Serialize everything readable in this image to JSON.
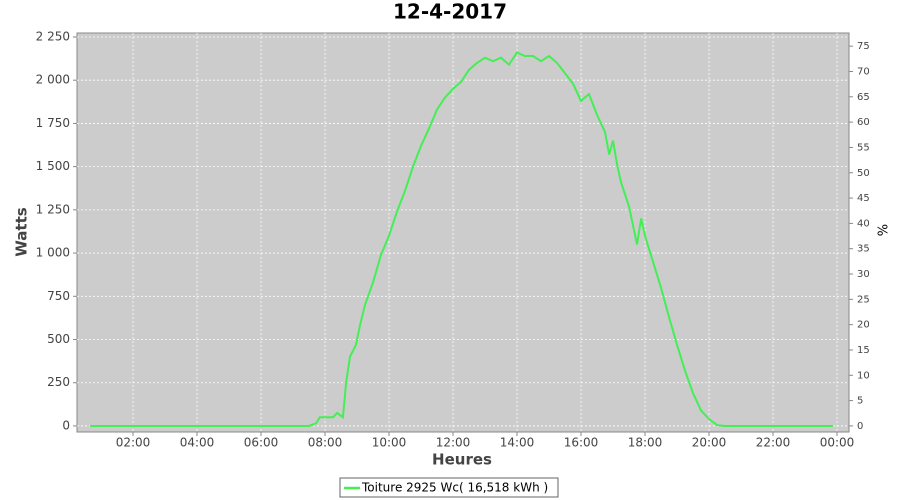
{
  "chart_data": {
    "type": "line",
    "title": "12-4-2017",
    "x_label": "Heures",
    "y_label": "Watts",
    "y2_label": "%",
    "x": [
      0.66,
      7.5,
      7.72,
      7.84,
      8.25,
      8.38,
      8.56,
      8.66,
      8.78,
      8.97,
      9.09,
      9.25,
      9.5,
      9.75,
      10.0,
      10.25,
      10.5,
      10.75,
      11.0,
      11.25,
      11.5,
      11.75,
      12.0,
      12.25,
      12.5,
      12.75,
      13.0,
      13.25,
      13.5,
      13.75,
      14.0,
      14.25,
      14.5,
      14.75,
      15.0,
      15.25,
      15.5,
      15.75,
      16.0,
      16.25,
      16.5,
      16.75,
      16.88,
      17.0,
      17.13,
      17.25,
      17.5,
      17.75,
      17.88,
      18.0,
      18.25,
      18.5,
      18.75,
      19.0,
      19.25,
      19.5,
      19.75,
      20.0,
      20.25,
      20.5,
      23.88
    ],
    "series": [
      {
        "name": "Toiture 2925 Wc( 16,518 kWh )",
        "color": "#44ee55",
        "values": [
          0,
          0,
          15,
          50,
          50,
          75,
          50,
          250,
          400,
          470,
          580,
          700,
          830,
          990,
          1100,
          1240,
          1360,
          1500,
          1620,
          1720,
          1830,
          1900,
          1950,
          1990,
          2060,
          2100,
          2130,
          2110,
          2130,
          2090,
          2160,
          2140,
          2140,
          2110,
          2140,
          2100,
          2040,
          1980,
          1880,
          1920,
          1800,
          1700,
          1570,
          1650,
          1510,
          1410,
          1270,
          1050,
          1200,
          1100,
          950,
          800,
          630,
          470,
          320,
          190,
          90,
          40,
          5,
          0,
          0
        ]
      }
    ],
    "xlim": [
      0.25,
      24.375
    ],
    "xticks": [
      {
        "value": 2,
        "label": "02:00"
      },
      {
        "value": 4,
        "label": "04:00"
      },
      {
        "value": 6,
        "label": "06:00"
      },
      {
        "value": 8,
        "label": "08:00"
      },
      {
        "value": 10,
        "label": "10:00"
      },
      {
        "value": 12,
        "label": "12:00"
      },
      {
        "value": 14,
        "label": "14:00"
      },
      {
        "value": 16,
        "label": "16:00"
      },
      {
        "value": 18,
        "label": "18:00"
      },
      {
        "value": 20,
        "label": "20:00"
      },
      {
        "value": 22,
        "label": "22:00"
      },
      {
        "value": 24,
        "label": "00:00"
      }
    ],
    "ylim": [
      -35,
      2273
    ],
    "yticks": [
      0,
      250,
      500,
      750,
      {
        "value": 1000,
        "label": "1 000"
      },
      {
        "value": 1250,
        "label": "1 250"
      },
      {
        "value": 1500,
        "label": "1 500"
      },
      {
        "value": 1750,
        "label": "1 750"
      },
      {
        "value": 2000,
        "label": "2 000"
      },
      {
        "value": 2250,
        "label": "2 250"
      }
    ],
    "y2lim": [
      -1.2,
      77.6
    ],
    "y2ticks": [
      0,
      5,
      10,
      15,
      20,
      25,
      30,
      35,
      40,
      45,
      50,
      55,
      60,
      65,
      70,
      75
    ],
    "grid": true,
    "legend": "bottom"
  }
}
